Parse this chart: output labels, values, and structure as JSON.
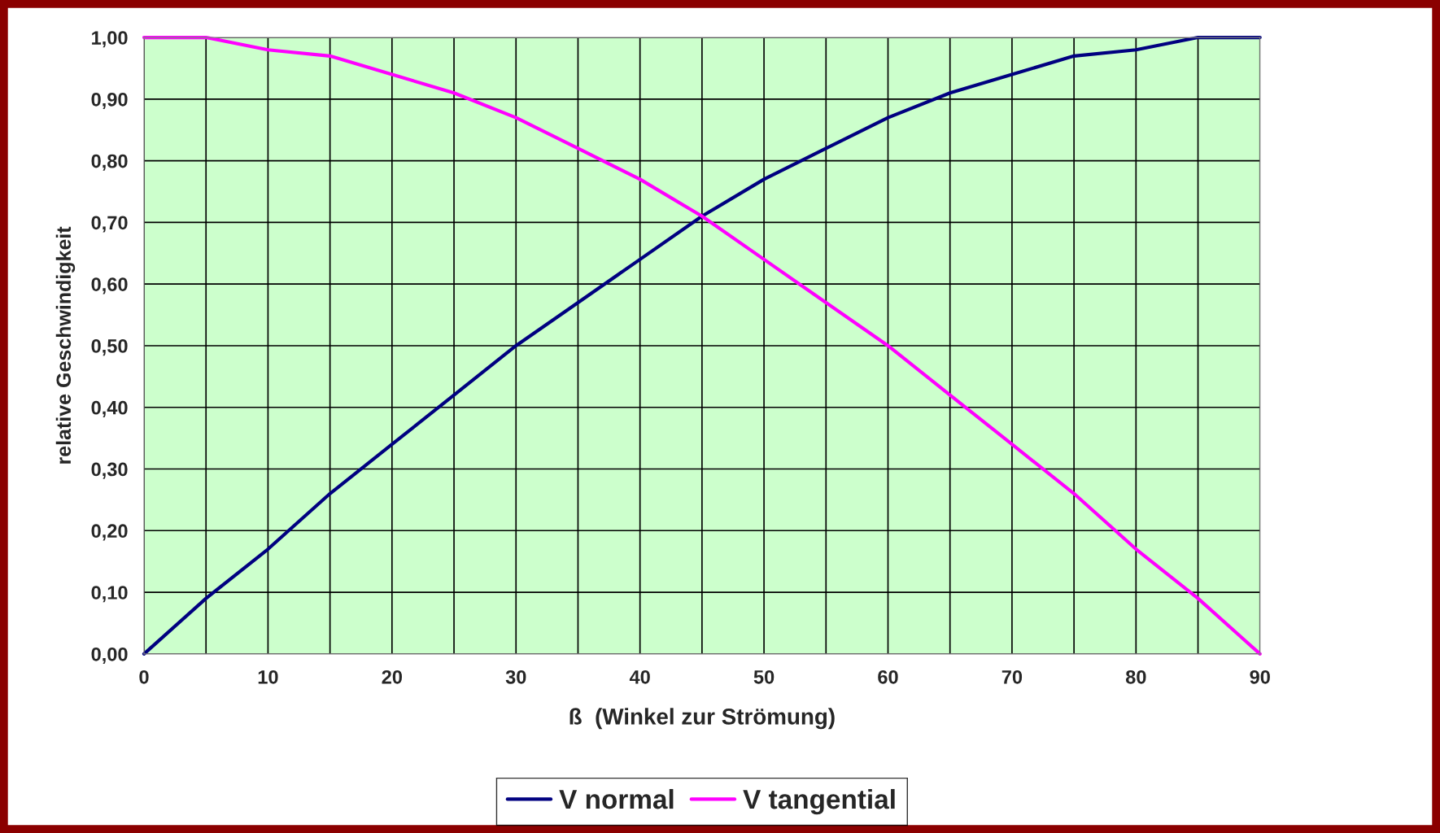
{
  "chart_data": {
    "type": "line",
    "xlabel": "ß  (Winkel zur Strömung)",
    "ylabel": "relative Geschwindigkeit",
    "x": [
      0,
      5,
      10,
      15,
      20,
      25,
      30,
      35,
      40,
      45,
      50,
      55,
      60,
      65,
      70,
      75,
      80,
      85,
      90
    ],
    "series": [
      {
        "name": "V normal",
        "color": "#000080",
        "values": [
          0.0,
          0.09,
          0.17,
          0.26,
          0.34,
          0.42,
          0.5,
          0.57,
          0.64,
          0.71,
          0.77,
          0.82,
          0.87,
          0.91,
          0.94,
          0.97,
          0.98,
          1.0,
          1.0
        ]
      },
      {
        "name": "V tangential",
        "color": "#ff00ff",
        "values": [
          1.0,
          1.0,
          0.98,
          0.97,
          0.94,
          0.91,
          0.87,
          0.82,
          0.77,
          0.71,
          0.64,
          0.57,
          0.5,
          0.42,
          0.34,
          0.26,
          0.17,
          0.09,
          0.0
        ]
      }
    ],
    "xlim": [
      0,
      90
    ],
    "xticks": [
      0,
      {
        "value": 5,
        "label": null
      },
      10,
      {
        "value": 15,
        "label": null
      },
      20,
      {
        "value": 25,
        "label": null
      },
      30,
      {
        "value": 35,
        "label": null
      },
      40,
      {
        "value": 45,
        "label": null
      },
      50,
      {
        "value": 55,
        "label": null
      },
      60,
      {
        "value": 65,
        "label": null
      },
      70,
      {
        "value": 75,
        "label": null
      },
      80,
      {
        "value": 85,
        "label": null
      },
      90
    ],
    "ylim": [
      0,
      1
    ],
    "yticks": [
      {
        "value": 0,
        "label": "0,00"
      },
      {
        "value": 0.1,
        "label": "0,10"
      },
      {
        "value": 0.2,
        "label": "0,20"
      },
      {
        "value": 0.3,
        "label": "0,30"
      },
      {
        "value": 0.4,
        "label": "0,40"
      },
      {
        "value": 0.5,
        "label": "0,50"
      },
      {
        "value": 0.6,
        "label": "0,60"
      },
      {
        "value": 0.7,
        "label": "0,70"
      },
      {
        "value": 0.8,
        "label": "0,80"
      },
      {
        "value": 0.9,
        "label": "0,90"
      },
      {
        "value": 1,
        "label": "1,00"
      }
    ],
    "grid": true,
    "legend": "bottom",
    "marker": "none",
    "line_style": "solid"
  }
}
